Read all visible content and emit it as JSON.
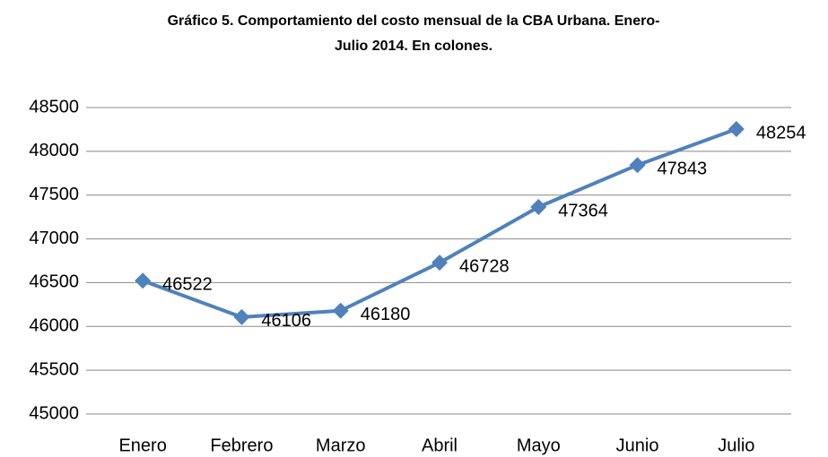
{
  "chart_data": {
    "type": "line",
    "title": [
      "Gráfico 5. Comportamiento del costo mensual de la CBA Urbana. Enero-",
      "Julio 2014. En colones."
    ],
    "categories": [
      "Enero",
      "Febrero",
      "Marzo",
      "Abril",
      "Mayo",
      "Junio",
      "Julio"
    ],
    "series": [
      {
        "name": "CBA Urbana",
        "color": "#4f81bd",
        "values": [
          46522,
          46106,
          46180,
          46728,
          47364,
          47843,
          48254
        ]
      }
    ],
    "ylim": [
      45000,
      48500
    ],
    "yticks": [
      45000,
      45500,
      46000,
      46500,
      47000,
      47500,
      48000,
      48500
    ],
    "grid": true,
    "data_labels": true,
    "marker": "diamond"
  }
}
